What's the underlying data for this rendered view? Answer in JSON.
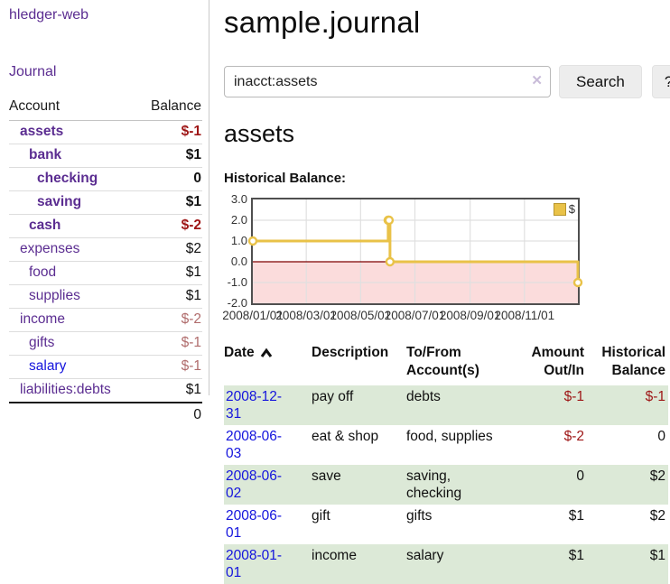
{
  "colors": {
    "link_purple": "#5b2d91",
    "link_blue": "#1414dd",
    "negative_red": "#9e1616",
    "negative_muted": "#b06c6c",
    "row_green": "#dce9d7",
    "chart_gold": "#e9c248",
    "chart_gold_border": "#b8962e",
    "chart_negative_fill": "#fbdcdc",
    "chart_zero_line": "#7d0000",
    "chart_grid": "#e0e0e0",
    "plot_border": "#4f4f4f"
  },
  "sidebar": {
    "brand": "hledger-web",
    "journal_link": "Journal",
    "accounts_table": {
      "headers": [
        "Account",
        "Balance"
      ],
      "rows": [
        {
          "account": "assets",
          "balance": "$-1",
          "depth": 1,
          "bold": true,
          "balance_style": "neg"
        },
        {
          "account": "bank",
          "balance": "$1",
          "depth": 2,
          "bold": true,
          "balance_style": "pos"
        },
        {
          "account": "checking",
          "balance": "0",
          "depth": 3,
          "bold": true,
          "balance_style": "pos"
        },
        {
          "account": "saving",
          "balance": "$1",
          "depth": 3,
          "bold": true,
          "balance_style": "pos"
        },
        {
          "account": "cash",
          "balance": "$-2",
          "depth": 2,
          "bold": true,
          "balance_style": "neg"
        },
        {
          "account": "expenses",
          "balance": "$2",
          "depth": 1,
          "bold": false,
          "balance_style": "pos"
        },
        {
          "account": "food",
          "balance": "$1",
          "depth": 2,
          "bold": false,
          "balance_style": "pos"
        },
        {
          "account": "supplies",
          "balance": "$1",
          "depth": 2,
          "bold": false,
          "balance_style": "pos"
        },
        {
          "account": "income",
          "balance": "$-2",
          "depth": 1,
          "bold": false,
          "balance_style": "neg-muted"
        },
        {
          "account": "gifts",
          "balance": "$-1",
          "depth": 2,
          "bold": false,
          "balance_style": "neg-muted"
        },
        {
          "account": "salary",
          "balance": "$-1",
          "depth": 2,
          "bold": false,
          "balance_style": "neg-muted",
          "link_color": "blue"
        },
        {
          "account": "liabilities:debts",
          "balance": "$1",
          "depth": 1,
          "bold": false,
          "balance_style": "pos"
        }
      ],
      "total": "0"
    }
  },
  "main": {
    "title": "sample.journal",
    "search": {
      "value": "inacct:assets",
      "clear_icon": "✕",
      "search_button": "Search",
      "help_button": "?"
    },
    "account_heading": "assets",
    "section_label": "Historical Balance:"
  },
  "chart_data": {
    "type": "line",
    "step": true,
    "title": "Historical Balance",
    "legend": [
      {
        "label": "$",
        "color": "#e9c248"
      }
    ],
    "legend_position": "top-right",
    "x": [
      "2008-01-01",
      "2008-06-01",
      "2008-06-02",
      "2008-06-03",
      "2008-12-31"
    ],
    "values": [
      1,
      2,
      2,
      0,
      -1
    ],
    "ylim": [
      -2,
      3
    ],
    "yticks": [
      3.0,
      2.0,
      1.0,
      0.0,
      -1.0,
      -2.0
    ],
    "ytick_labels": [
      "3.0",
      "2.0",
      "1.0",
      "0.0",
      "-1.0",
      "-2.0"
    ],
    "xticks": [
      "2008/01/01",
      "2008/03/01",
      "2008/05/01",
      "2008/07/01",
      "2008/09/01",
      "2008/11/01"
    ],
    "xrange": [
      "2008-01-01",
      "2008-12-31"
    ],
    "grid": true,
    "negative_region_shaded": true
  },
  "transactions": {
    "headers": [
      {
        "line1": "Date",
        "line2": "",
        "align": "left",
        "sorted": "asc"
      },
      {
        "line1": "Description",
        "line2": "",
        "align": "left"
      },
      {
        "line1": "To/From",
        "line2": "Account(s)",
        "align": "left"
      },
      {
        "line1": "Amount",
        "line2": "Out/In",
        "align": "right"
      },
      {
        "line1": "Historical",
        "line2": "Balance",
        "align": "right"
      }
    ],
    "rows": [
      {
        "date": "2008-12-31",
        "description": "pay off",
        "accounts": "debts",
        "amount": "$-1",
        "amount_neg": true,
        "balance": "$-1",
        "balance_neg": true
      },
      {
        "date": "2008-06-03",
        "description": "eat & shop",
        "accounts": "food, supplies",
        "amount": "$-2",
        "amount_neg": true,
        "balance": "0",
        "balance_neg": false
      },
      {
        "date": "2008-06-02",
        "description": "save",
        "accounts": "saving, checking",
        "amount": "0",
        "amount_neg": false,
        "balance": "$2",
        "balance_neg": false
      },
      {
        "date": "2008-06-01",
        "description": "gift",
        "accounts": "gifts",
        "amount": "$1",
        "amount_neg": false,
        "balance": "$2",
        "balance_neg": false
      },
      {
        "date": "2008-01-01",
        "description": "income",
        "accounts": "salary",
        "amount": "$1",
        "amount_neg": false,
        "balance": "$1",
        "balance_neg": false
      }
    ]
  }
}
